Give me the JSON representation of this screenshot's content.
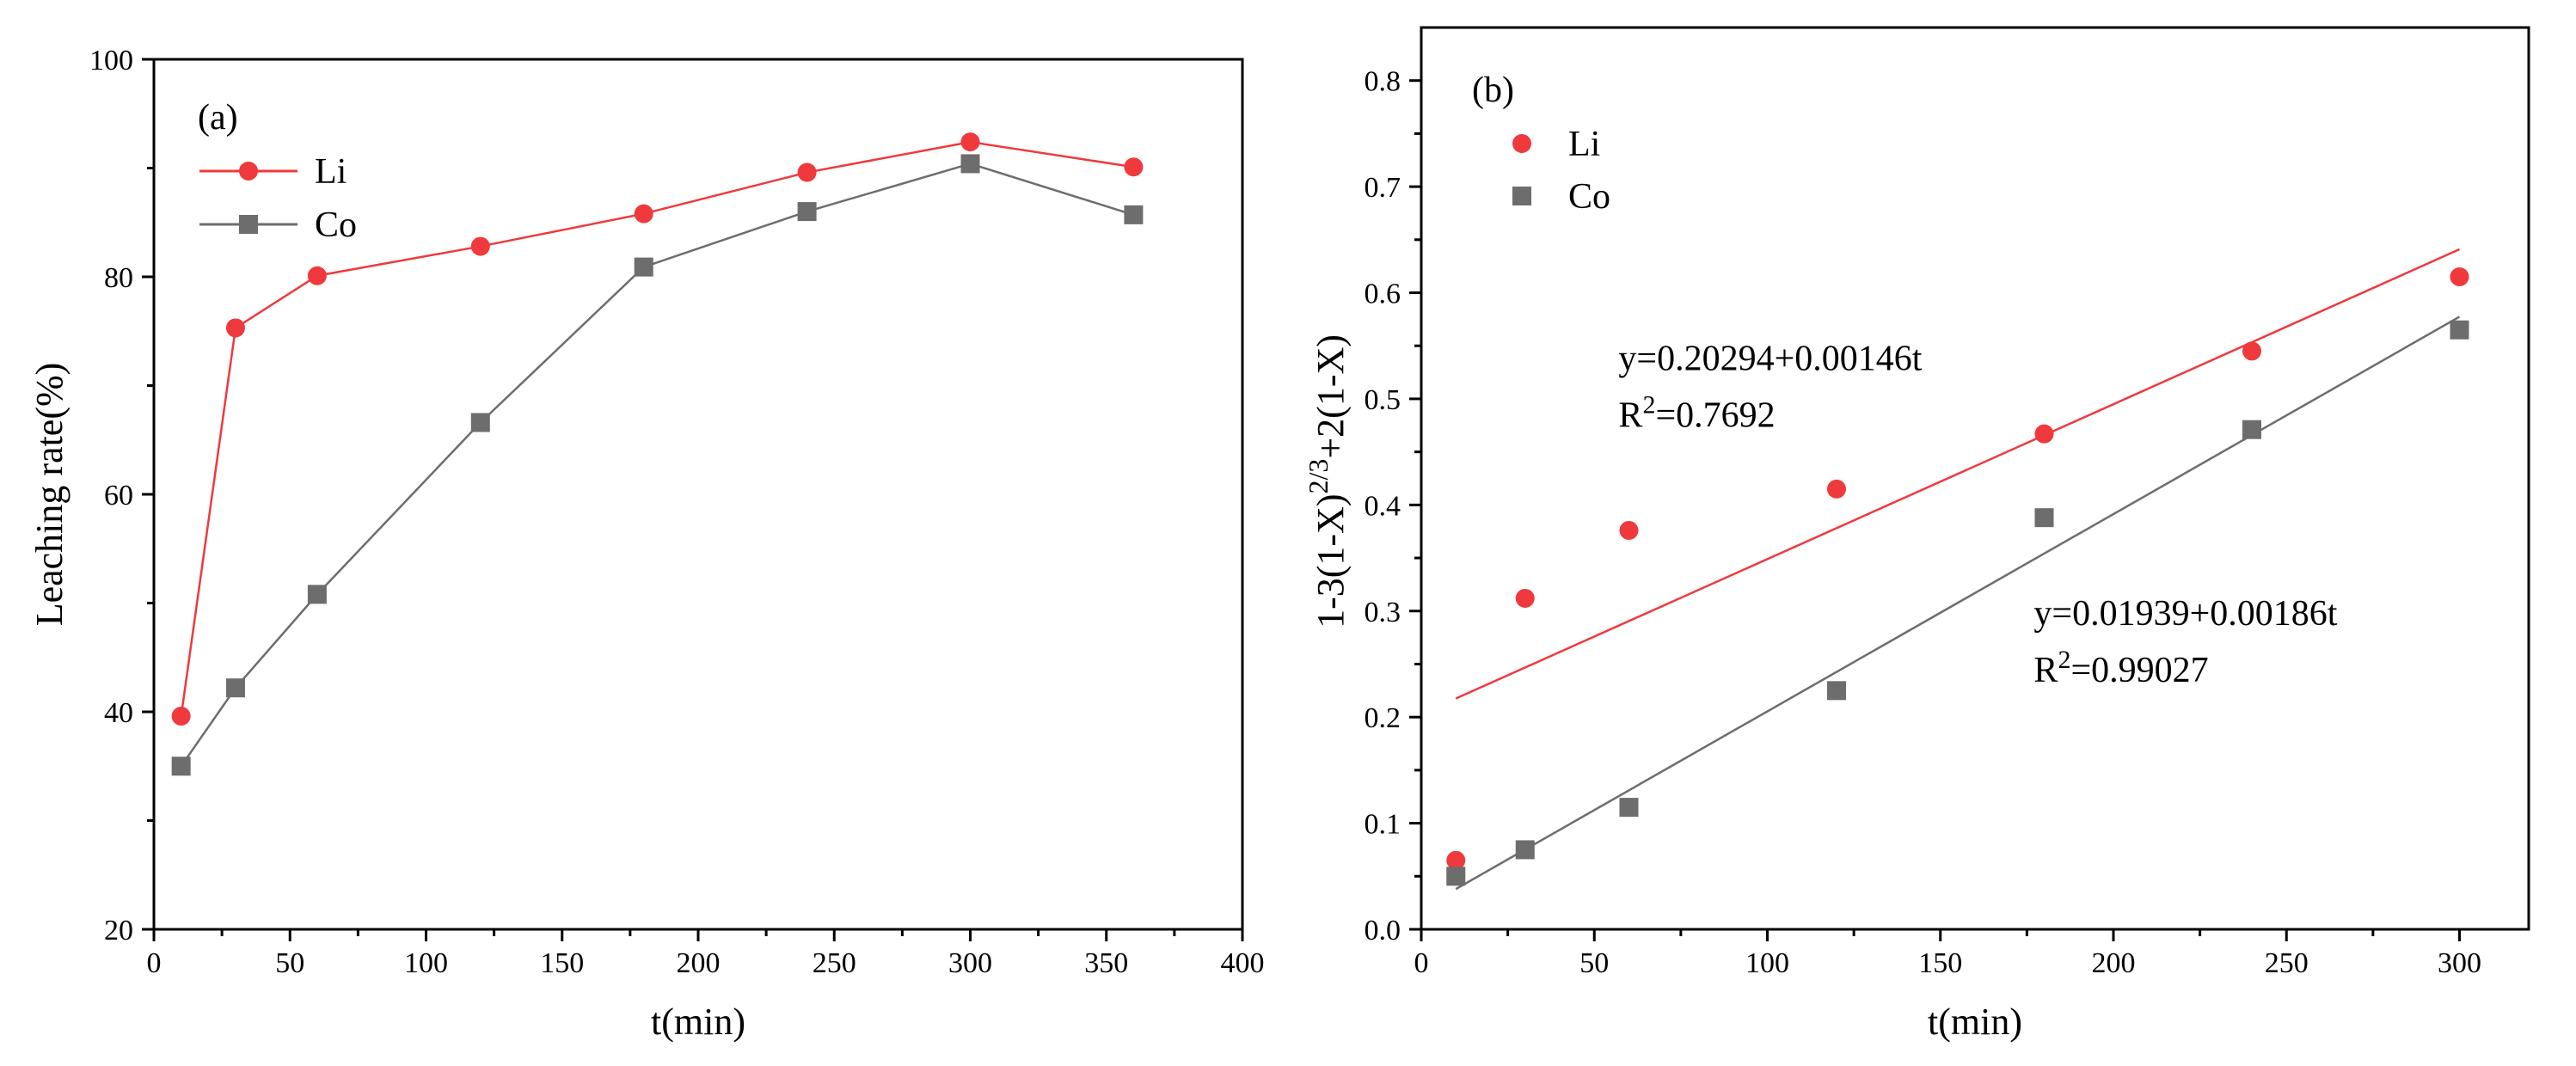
{
  "colors": {
    "li": "#f0393c",
    "co": "#6d6d6d"
  },
  "chart_data": [
    {
      "type": "line",
      "panel_label": "(a)",
      "xlabel": "t(min)",
      "ylabel": "Leaching rate(%)",
      "xlim": [
        0,
        400
      ],
      "ylim": [
        20,
        100
      ],
      "xticks": [
        0,
        50,
        100,
        150,
        200,
        250,
        300,
        350,
        400
      ],
      "yticks": [
        20,
        40,
        60,
        80,
        100
      ],
      "legend_position": "top-left",
      "series": [
        {
          "name": "Li",
          "key": "li",
          "marker": "circle",
          "x": [
            10,
            30,
            60,
            120,
            180,
            240,
            300,
            360
          ],
          "y": [
            39.6,
            75.3,
            80.1,
            82.8,
            85.8,
            89.6,
            92.4,
            90.1
          ]
        },
        {
          "name": "Co",
          "key": "co",
          "marker": "square",
          "x": [
            10,
            30,
            60,
            120,
            180,
            240,
            300,
            360
          ],
          "y": [
            35.0,
            42.2,
            50.8,
            66.6,
            80.9,
            86.0,
            90.4,
            85.7
          ]
        }
      ]
    },
    {
      "type": "scatter",
      "panel_label": "(b)",
      "xlabel": "t(min)",
      "ylabel": "1-3(1-X)^(2/3)+2(1-X)",
      "ylabel_parts": {
        "base": "1-3(1-X)",
        "sup": "2/3",
        "tail": "+2(1-X)"
      },
      "xlim": [
        0,
        320
      ],
      "ylim": [
        0.0,
        0.85
      ],
      "xticks": [
        0,
        50,
        100,
        150,
        200,
        250,
        300
      ],
      "yticks": [
        0.0,
        0.1,
        0.2,
        0.3,
        0.4,
        0.5,
        0.6,
        0.7,
        0.8
      ],
      "legend_position": "top-left",
      "series": [
        {
          "name": "Li",
          "key": "li",
          "marker": "circle",
          "x": [
            10,
            30,
            60,
            120,
            180,
            240,
            300
          ],
          "y": [
            0.065,
            0.312,
            0.376,
            0.415,
            0.467,
            0.545,
            0.615
          ],
          "fit": {
            "intercept": 0.20294,
            "slope": 0.00146,
            "x_range": [
              10,
              300
            ]
          }
        },
        {
          "name": "Co",
          "key": "co",
          "marker": "square",
          "x": [
            10,
            30,
            60,
            120,
            180,
            240,
            300
          ],
          "y": [
            0.05,
            0.075,
            0.115,
            0.225,
            0.388,
            0.471,
            0.565
          ],
          "fit": {
            "intercept": 0.01939,
            "slope": 0.00186,
            "x_range": [
              10,
              300
            ]
          }
        }
      ],
      "annotations": [
        {
          "key": "li",
          "anchor_x": 57,
          "anchor_y": 0.527,
          "equation": "y=0.20294+0.00146t",
          "r2_prefix": "R",
          "r2_sup": "2",
          "r2_value": "=0.7692"
        },
        {
          "key": "co",
          "anchor_x": 177,
          "anchor_y": 0.287,
          "equation": "y=0.01939+0.00186t",
          "r2_prefix": "R",
          "r2_sup": "2",
          "r2_value": "=0.99027"
        }
      ]
    }
  ]
}
